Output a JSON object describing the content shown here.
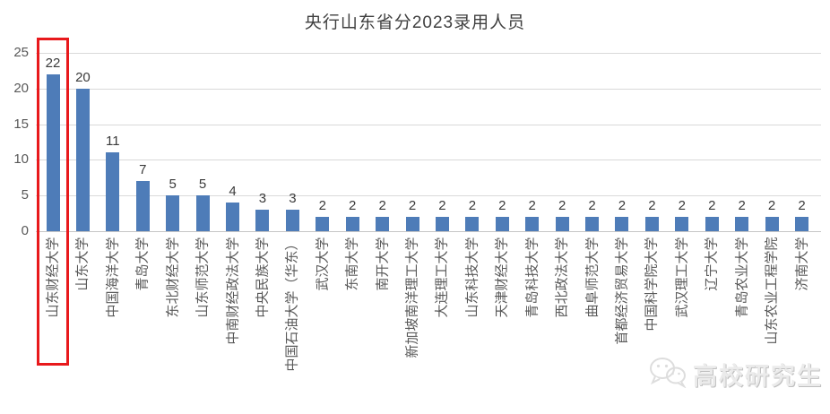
{
  "title": "央行山东省分2023录用人员",
  "chart_data": {
    "type": "bar",
    "title": "央行山东省分2023录用人员",
    "categories": [
      "山东财经大学",
      "山东大学",
      "中国海洋大学",
      "青岛大学",
      "东北财经大学",
      "山东师范大学",
      "中南财经政法大学",
      "中央民族大学",
      "中国石油大学（华东）",
      "武汉大学",
      "东南大学",
      "南开大学",
      "新加坡南洋理工大学",
      "大连理工大学",
      "山东科技大学",
      "天津财经大学",
      "青岛科技大学",
      "西北政法大学",
      "曲阜师范大学",
      "首都经济贸易大学",
      "中国科学院大学",
      "武汉理工大学",
      "辽宁大学",
      "青岛农业大学",
      "山东农业工程学院",
      "济南大学"
    ],
    "values": [
      22,
      20,
      11,
      7,
      5,
      5,
      4,
      3,
      3,
      2,
      2,
      2,
      2,
      2,
      2,
      2,
      2,
      2,
      2,
      2,
      2,
      2,
      2,
      2,
      2,
      2
    ],
    "xlabel": "",
    "ylabel": "",
    "ylim": [
      0,
      25
    ],
    "yticks": [
      0,
      5,
      10,
      15,
      20,
      25
    ],
    "grid": true,
    "legend": "none",
    "bar_color": "#4e7cb8",
    "data_labels": true,
    "highlight": {
      "index": 0,
      "color": "#e8191c"
    }
  },
  "watermark": {
    "icon": "wechat-icon",
    "text": "高校研究生"
  }
}
